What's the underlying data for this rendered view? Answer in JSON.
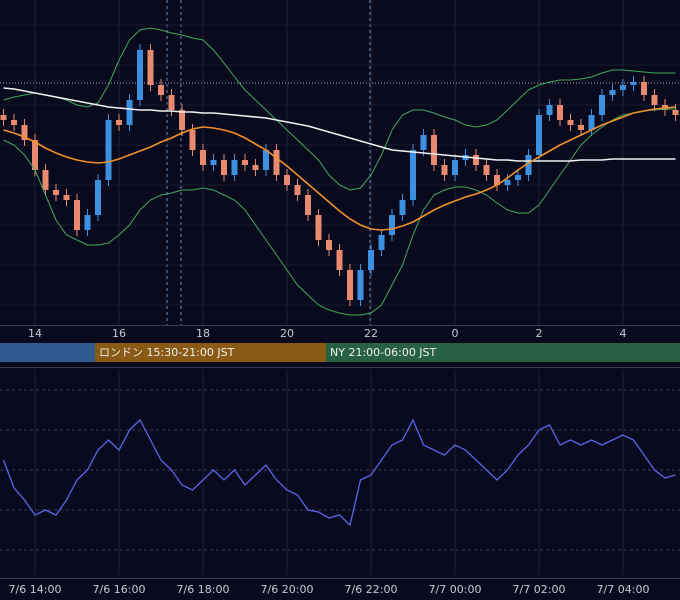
{
  "chart_data": [
    {
      "type": "candlestick",
      "categories": [
        null,
        null,
        null,
        "14",
        null,
        null,
        null,
        null,
        null,
        null,
        null,
        "16",
        null,
        null,
        null,
        null,
        null,
        null,
        null,
        "18",
        null,
        null,
        null,
        null,
        null,
        null,
        null,
        "20",
        null,
        null,
        null,
        null,
        null,
        null,
        null,
        "22",
        null,
        null,
        null,
        null,
        null,
        null,
        null,
        "0",
        null,
        null,
        null,
        null,
        null,
        null,
        null,
        "2",
        null,
        null,
        null,
        null,
        null,
        null,
        null,
        "4",
        null,
        null,
        null,
        null,
        null
      ],
      "open": [
        210,
        205,
        200,
        185,
        155,
        135,
        130,
        125,
        95,
        110,
        145,
        205,
        200,
        225,
        275,
        240,
        230,
        215,
        195,
        175,
        160,
        165,
        150,
        165,
        160,
        155,
        175,
        150,
        140,
        130,
        110,
        85,
        75,
        55,
        25,
        55,
        75,
        90,
        110,
        125,
        175,
        190,
        160,
        150,
        165,
        170,
        160,
        150,
        140,
        145,
        150,
        170,
        210,
        220,
        205,
        200,
        195,
        210,
        230,
        235,
        240,
        243,
        230,
        220,
        215
      ],
      "high": [
        216,
        211,
        206,
        191,
        161,
        141,
        136,
        131,
        116,
        151,
        211,
        211,
        231,
        281,
        281,
        246,
        236,
        221,
        201,
        181,
        171,
        171,
        171,
        171,
        166,
        181,
        181,
        156,
        146,
        136,
        116,
        91,
        81,
        61,
        61,
        81,
        96,
        116,
        131,
        181,
        196,
        196,
        166,
        171,
        176,
        176,
        166,
        156,
        151,
        156,
        176,
        216,
        226,
        226,
        211,
        206,
        216,
        236,
        241,
        246,
        249,
        249,
        236,
        226,
        221
      ],
      "low": [
        199,
        194,
        179,
        149,
        129,
        124,
        119,
        89,
        89,
        104,
        139,
        194,
        194,
        219,
        234,
        224,
        209,
        189,
        169,
        154,
        154,
        144,
        144,
        154,
        149,
        149,
        144,
        134,
        124,
        104,
        79,
        69,
        49,
        19,
        19,
        49,
        69,
        84,
        104,
        119,
        169,
        154,
        144,
        144,
        159,
        154,
        144,
        134,
        134,
        139,
        144,
        164,
        204,
        199,
        194,
        189,
        189,
        204,
        224,
        229,
        234,
        224,
        214,
        209,
        204
      ],
      "close": [
        205,
        200,
        185,
        155,
        135,
        130,
        125,
        95,
        110,
        145,
        205,
        200,
        225,
        275,
        240,
        230,
        215,
        195,
        175,
        160,
        165,
        150,
        165,
        160,
        155,
        175,
        150,
        140,
        130,
        110,
        85,
        75,
        55,
        25,
        55,
        75,
        90,
        110,
        125,
        175,
        190,
        160,
        150,
        165,
        170,
        160,
        150,
        140,
        145,
        150,
        170,
        210,
        220,
        205,
        200,
        195,
        210,
        230,
        235,
        240,
        243,
        230,
        220,
        215,
        210
      ],
      "up_color": "#3d8fe0",
      "down_color": "#e88a70",
      "series": [
        {
          "color": "#3fa860",
          "values": [
            225,
            228,
            230,
            232,
            230,
            228,
            225,
            220,
            218,
            222,
            240,
            265,
            285,
            295,
            297,
            295,
            292,
            290,
            287,
            285,
            275,
            262,
            248,
            235,
            225,
            215,
            205,
            195,
            185,
            175,
            165,
            150,
            140,
            135,
            137,
            150,
            170,
            195,
            210,
            215,
            215,
            212,
            208,
            205,
            200,
            198,
            200,
            205,
            215,
            225,
            235,
            240,
            243,
            245,
            245,
            246,
            248,
            252,
            255,
            255,
            254,
            253,
            252,
            252,
            252
          ]
        },
        {
          "color": "#3fa860",
          "values": [
            185,
            180,
            170,
            155,
            130,
            105,
            90,
            85,
            80,
            80,
            82,
            90,
            100,
            115,
            125,
            130,
            132,
            135,
            135,
            137,
            135,
            130,
            125,
            115,
            100,
            85,
            70,
            55,
            40,
            30,
            20,
            15,
            12,
            10,
            10,
            12,
            20,
            40,
            60,
            90,
            115,
            130,
            135,
            138,
            138,
            135,
            130,
            122,
            115,
            112,
            112,
            120,
            135,
            150,
            165,
            180,
            190,
            198,
            205,
            210,
            212,
            214,
            215,
            216,
            216
          ]
        },
        {
          "color": "#f0f0f0",
          "values": [
            237,
            236,
            234,
            232,
            230,
            228,
            226,
            224,
            222,
            220,
            218,
            217,
            216,
            215,
            215,
            214,
            214,
            213,
            213,
            212,
            212,
            211,
            210,
            209,
            208,
            207,
            205,
            203,
            201,
            199,
            196,
            193,
            190,
            187,
            184,
            181,
            178,
            175,
            174,
            173,
            172,
            171,
            170,
            169,
            168,
            167,
            166,
            165,
            165,
            164,
            164,
            164,
            164,
            164,
            164,
            165,
            165,
            165,
            166,
            166,
            166,
            166,
            166,
            166,
            166
          ]
        },
        {
          "color": "#f0902a",
          "values": [
            195,
            192,
            188,
            183,
            177,
            172,
            168,
            165,
            163,
            162,
            163,
            166,
            170,
            174,
            178,
            183,
            187,
            192,
            196,
            198,
            197,
            195,
            192,
            187,
            181,
            175,
            167,
            159,
            150,
            141,
            132,
            123,
            114,
            106,
            100,
            96,
            95,
            96,
            99,
            103,
            109,
            115,
            120,
            124,
            128,
            131,
            135,
            140,
            147,
            155,
            162,
            168,
            174,
            180,
            185,
            190,
            195,
            200,
            204,
            208,
            212,
            214,
            216,
            217,
            218
          ]
        }
      ],
      "price_line": 242,
      "ylim": [
        0,
        325
      ],
      "yticks": [
        20,
        60,
        100,
        140,
        180,
        220,
        260,
        300
      ],
      "grid": true
    },
    {
      "type": "line",
      "categories": [
        null,
        null,
        null,
        "7/6 14:00",
        null,
        null,
        null,
        null,
        null,
        null,
        null,
        "7/6 16:00",
        null,
        null,
        null,
        null,
        null,
        null,
        null,
        "7/6 18:00",
        null,
        null,
        null,
        null,
        null,
        null,
        null,
        "7/6 20:00",
        null,
        null,
        null,
        null,
        null,
        null,
        null,
        "7/6 22:00",
        null,
        null,
        null,
        null,
        null,
        null,
        null,
        "7/7 00:00",
        null,
        null,
        null,
        null,
        null,
        null,
        null,
        "7/7 02:00",
        null,
        null,
        null,
        null,
        null,
        null,
        null,
        "7/7 04:00",
        null,
        null,
        null,
        null,
        null
      ],
      "series": [
        {
          "color": "#5a64e8",
          "values": [
            115,
            87,
            75,
            60,
            65,
            60,
            75,
            95,
            105,
            125,
            135,
            125,
            145,
            155,
            135,
            115,
            105,
            90,
            85,
            95,
            105,
            95,
            105,
            90,
            100,
            110,
            95,
            85,
            80,
            65,
            63,
            57,
            60,
            50,
            95,
            100,
            115,
            130,
            135,
            155,
            130,
            125,
            120,
            130,
            125,
            115,
            105,
            95,
            105,
            120,
            130,
            145,
            150,
            130,
            135,
            130,
            135,
            130,
            135,
            140,
            135,
            120,
            105,
            97,
            100
          ]
        }
      ],
      "ylim": [
        0,
        205
      ],
      "yticks": [
        25,
        65,
        105,
        145,
        185
      ],
      "grid": true
    }
  ],
  "sessions": [
    null,
    "ロンドン 15:30-21:00 JST",
    "NY 21:00-06:00 JST"
  ]
}
